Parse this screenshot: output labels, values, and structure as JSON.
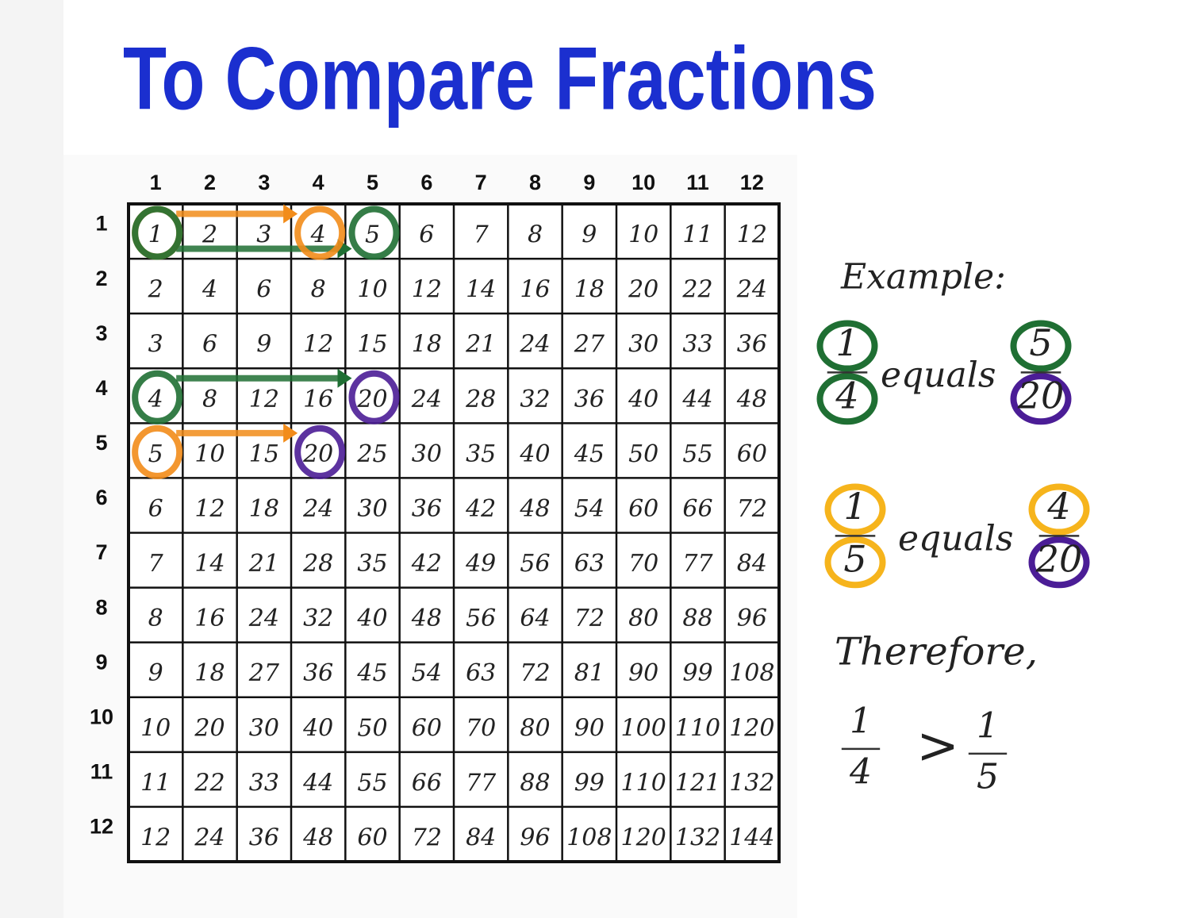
{
  "title": "To Compare Fractions",
  "table": {
    "column_headers": [
      1,
      2,
      3,
      4,
      5,
      6,
      7,
      8,
      9,
      10,
      11,
      12
    ],
    "row_headers": [
      1,
      2,
      3,
      4,
      5,
      6,
      7,
      8,
      9,
      10,
      11,
      12
    ],
    "rows": [
      [
        1,
        2,
        3,
        4,
        5,
        6,
        7,
        8,
        9,
        10,
        11,
        12
      ],
      [
        2,
        4,
        6,
        8,
        10,
        12,
        14,
        16,
        18,
        20,
        22,
        24
      ],
      [
        3,
        6,
        9,
        12,
        15,
        18,
        21,
        24,
        27,
        30,
        33,
        36
      ],
      [
        4,
        8,
        12,
        16,
        20,
        24,
        28,
        32,
        36,
        40,
        44,
        48
      ],
      [
        5,
        10,
        15,
        20,
        25,
        30,
        35,
        40,
        45,
        50,
        55,
        60
      ],
      [
        6,
        12,
        18,
        24,
        30,
        36,
        42,
        48,
        54,
        60,
        66,
        72
      ],
      [
        7,
        14,
        21,
        28,
        35,
        42,
        49,
        56,
        63,
        70,
        77,
        84
      ],
      [
        8,
        16,
        24,
        32,
        40,
        48,
        56,
        64,
        72,
        80,
        88,
        96
      ],
      [
        9,
        18,
        27,
        36,
        45,
        54,
        63,
        72,
        81,
        90,
        99,
        108
      ],
      [
        10,
        20,
        30,
        40,
        50,
        60,
        70,
        80,
        90,
        100,
        110,
        120
      ],
      [
        11,
        22,
        33,
        44,
        55,
        66,
        77,
        88,
        99,
        110,
        121,
        132
      ],
      [
        12,
        24,
        36,
        48,
        60,
        72,
        84,
        96,
        108,
        120,
        132,
        144
      ]
    ]
  },
  "example": {
    "heading": "Example:",
    "pairs": [
      {
        "left": {
          "numerator": 1,
          "denominator": 4
        },
        "relation": "equals",
        "right": {
          "numerator": 5,
          "denominator": 20
        }
      },
      {
        "left": {
          "numerator": 1,
          "denominator": 5
        },
        "relation": "equals",
        "right": {
          "numerator": 4,
          "denominator": 20
        }
      }
    ]
  },
  "conclusion": {
    "heading": "Therefore,",
    "left": {
      "numerator": 1,
      "denominator": 4
    },
    "relation": ">",
    "right": {
      "numerator": 1,
      "denominator": 5
    }
  }
}
